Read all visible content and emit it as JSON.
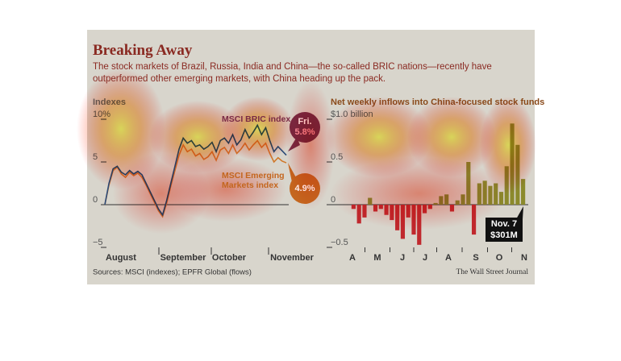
{
  "header": {
    "title": "Breaking Away",
    "subtitle": "The stock markets of Brazil, Russia, India and China—the so-called BRIC nations—recently have outperformed other emerging markets, with China heading up the pack.",
    "source": "Sources: MSCI (indexes); EPFR Global (flows)",
    "credit": "The Wall Street Journal"
  },
  "chart_data": [
    {
      "type": "line",
      "title": "Indexes",
      "x_labels": [
        "August",
        "September",
        "October",
        "November"
      ],
      "ylim": [
        -5,
        10
      ],
      "yticks": [
        {
          "value": 10,
          "label": "10%"
        },
        5,
        0,
        {
          "value": -5,
          "label": "−5"
        }
      ],
      "annotation": "Fri.",
      "series": [
        {
          "name": "MSCI BRIC index",
          "color": "#2b4a78",
          "label_color": "#7a2a45",
          "end_label": "5.8%",
          "values": [
            0,
            2.5,
            4.2,
            4.5,
            3.8,
            3.5,
            4,
            3.6,
            3.9,
            3.5,
            2.5,
            1.5,
            0.5,
            -0.5,
            -1.2,
            0.5,
            2.5,
            4.5,
            6.5,
            7.8,
            7.2,
            7.5,
            6.8,
            7,
            6.5,
            6.8,
            7.3,
            6.2,
            7.5,
            7.8,
            7.2,
            8.2,
            7,
            7.6,
            8.8,
            7.8,
            8.5,
            9.3,
            8.2,
            9,
            7.5,
            6.2,
            6.8,
            6.3,
            5.8
          ]
        },
        {
          "name": "MSCI Emerging Markets index",
          "color": "#d0782a",
          "label_color": "#c4661e",
          "end_label": "4.9%",
          "values": [
            0,
            2.3,
            4,
            4.4,
            3.6,
            3.2,
            3.8,
            3.4,
            3.7,
            3.2,
            2.3,
            1.3,
            0.3,
            -0.7,
            -1.4,
            0.2,
            2.2,
            4,
            5.8,
            7,
            6.2,
            6.5,
            5.7,
            6,
            5.3,
            5.6,
            6.2,
            5.2,
            6.4,
            6.7,
            6,
            7,
            6,
            6.5,
            7.2,
            6.4,
            7,
            7.5,
            6.7,
            7.2,
            6,
            5,
            5.5,
            5.1,
            4.9
          ]
        }
      ]
    },
    {
      "type": "bar",
      "title": "Net weekly inflows into China-focused stock funds",
      "x_labels": [
        "A",
        "M",
        "J",
        "J",
        "A",
        "S",
        "O",
        "N"
      ],
      "ylim": [
        -0.5,
        1.0
      ],
      "yticks": [
        {
          "value": 1.0,
          "label": "$1.0 billion"
        },
        0.5,
        0,
        {
          "value": -0.5,
          "label": "−0.5"
        }
      ],
      "positive_color": "#8b8a2c",
      "negative_color": "#c0282d",
      "annotation": "Nov. 7",
      "values": [
        -0.05,
        -0.22,
        -0.15,
        0.08,
        -0.08,
        -0.05,
        -0.12,
        -0.18,
        -0.3,
        -0.4,
        -0.15,
        -0.35,
        -0.47,
        -0.1,
        -0.05,
        0.02,
        0.1,
        0.12,
        -0.08,
        0.05,
        0.12,
        0.5,
        -0.35,
        0.25,
        0.28,
        0.22,
        0.25,
        0.15,
        0.45,
        0.95,
        0.7,
        0.301
      ],
      "value_labels": [
        null,
        null,
        null,
        null,
        null,
        null,
        null,
        null,
        null,
        null,
        null,
        null,
        null,
        null,
        null,
        null,
        null,
        null,
        null,
        null,
        null,
        null,
        null,
        null,
        null,
        null,
        null,
        null,
        null,
        null,
        null,
        "$301M"
      ]
    }
  ]
}
